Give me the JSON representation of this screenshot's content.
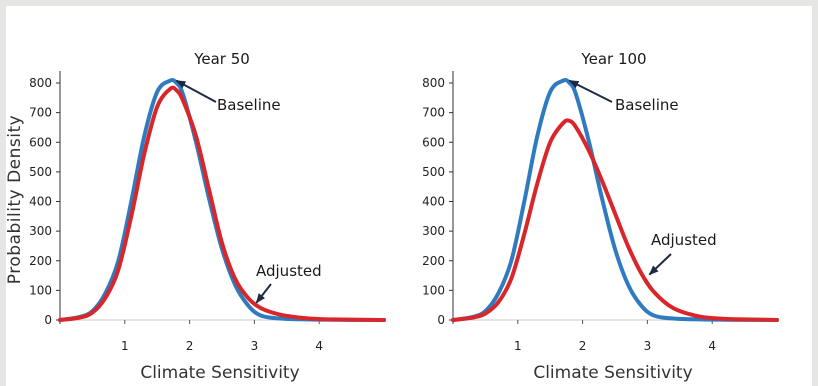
{
  "chart_data": [
    {
      "type": "line",
      "title": "Year 50",
      "xlabel": "Climate Sensitivity",
      "ylabel": "Probability Density",
      "xlim": [
        0,
        5
      ],
      "ylim": [
        0,
        800
      ],
      "xticks": [
        1,
        2,
        3,
        4
      ],
      "yticks": [
        0,
        100,
        200,
        300,
        400,
        500,
        600,
        700,
        800
      ],
      "series": [
        {
          "color": "#2e7bbf",
          "x": [
            0,
            0.3,
            0.5,
            0.7,
            0.9,
            1.1,
            1.3,
            1.5,
            1.7,
            1.8,
            1.9,
            2.1,
            2.3,
            2.5,
            2.7,
            2.9,
            3.1,
            3.4,
            3.8,
            4.2,
            5
          ],
          "y": [
            0,
            10,
            30,
            90,
            200,
            400,
            620,
            770,
            808,
            800,
            760,
            600,
            410,
            240,
            120,
            50,
            15,
            5,
            2,
            1,
            0
          ]
        },
        {
          "color": "#d9262a",
          "x": [
            0,
            0.3,
            0.5,
            0.7,
            0.9,
            1.1,
            1.3,
            1.5,
            1.7,
            1.8,
            1.9,
            2.1,
            2.3,
            2.5,
            2.7,
            2.9,
            3.1,
            3.4,
            3.8,
            4.2,
            5
          ],
          "y": [
            0,
            8,
            25,
            75,
            170,
            350,
            560,
            720,
            780,
            775,
            740,
            620,
            440,
            260,
            140,
            75,
            40,
            18,
            6,
            2,
            0
          ]
        }
      ],
      "annotations": [
        {
          "text": "Baseline",
          "target": [
            1.75,
            808
          ]
        },
        {
          "text": "Adjusted",
          "target": [
            3.0,
            65
          ]
        }
      ]
    },
    {
      "type": "line",
      "title": "Year 100",
      "xlabel": "Climate Sensitivity",
      "ylabel": "",
      "xlim": [
        0,
        5
      ],
      "ylim": [
        0,
        800
      ],
      "xticks": [
        1,
        2,
        3,
        4
      ],
      "yticks": [
        0,
        100,
        200,
        300,
        400,
        500,
        600,
        700,
        800
      ],
      "series": [
        {
          "color": "#2e7bbf",
          "x": [
            0,
            0.3,
            0.5,
            0.7,
            0.9,
            1.1,
            1.3,
            1.5,
            1.7,
            1.8,
            1.9,
            2.1,
            2.3,
            2.5,
            2.7,
            2.9,
            3.1,
            3.4,
            3.8,
            4.2,
            5
          ],
          "y": [
            0,
            10,
            30,
            90,
            200,
            400,
            620,
            770,
            808,
            800,
            760,
            600,
            410,
            240,
            120,
            50,
            15,
            5,
            2,
            1,
            0
          ]
        },
        {
          "color": "#d9262a",
          "x": [
            0,
            0.3,
            0.5,
            0.7,
            0.9,
            1.1,
            1.3,
            1.5,
            1.7,
            1.8,
            1.9,
            2.1,
            2.3,
            2.5,
            2.7,
            2.9,
            3.1,
            3.4,
            3.8,
            4.2,
            5
          ],
          "y": [
            0,
            8,
            22,
            60,
            140,
            290,
            460,
            600,
            665,
            672,
            650,
            570,
            470,
            360,
            250,
            160,
            95,
            40,
            12,
            4,
            0
          ]
        }
      ],
      "annotations": [
        {
          "text": "Baseline",
          "target": [
            1.75,
            808
          ]
        },
        {
          "text": "Adjusted",
          "target": [
            3.0,
            160
          ]
        }
      ]
    }
  ]
}
